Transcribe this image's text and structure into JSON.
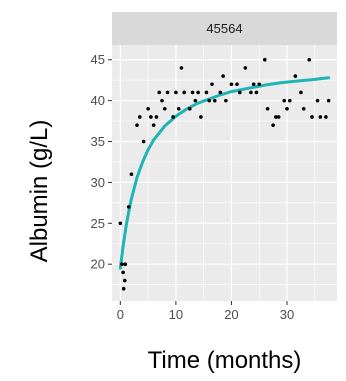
{
  "chart_data": {
    "type": "scatter",
    "facet_label": "45564",
    "xlabel": "Time (months)",
    "ylabel": "Albumin (g/L)",
    "xlim": [
      -1.5,
      39
    ],
    "ylim": [
      15.5,
      46.8
    ],
    "x_ticks": [
      0,
      10,
      20,
      30
    ],
    "y_ticks": [
      20,
      25,
      30,
      35,
      40,
      45
    ],
    "grid": true,
    "legend": "none",
    "colors": {
      "panel_bg": "#ebebeb",
      "strip_bg": "#d9d9d9",
      "grid_major": "#ffffff",
      "point": "#000000",
      "fit_line": "#1fb4b4"
    },
    "series": [
      {
        "kind": "points",
        "points": [
          [
            0.0,
            25.0
          ],
          [
            0.3,
            20.0
          ],
          [
            0.5,
            19.0
          ],
          [
            0.6,
            17.0
          ],
          [
            0.8,
            18.0
          ],
          [
            0.9,
            20.0
          ],
          [
            1.5,
            27.0
          ],
          [
            2.0,
            31.0
          ],
          [
            3.0,
            37.0
          ],
          [
            3.5,
            38.0
          ],
          [
            4.2,
            35.0
          ],
          [
            5.0,
            39.0
          ],
          [
            5.5,
            38.0
          ],
          [
            6.0,
            37.0
          ],
          [
            6.5,
            38.0
          ],
          [
            7.0,
            41.0
          ],
          [
            7.5,
            40.0
          ],
          [
            8.0,
            39.0
          ],
          [
            8.5,
            41.0
          ],
          [
            9.5,
            38.0
          ],
          [
            10.0,
            41.0
          ],
          [
            10.5,
            39.0
          ],
          [
            11.0,
            44.0
          ],
          [
            11.5,
            41.0
          ],
          [
            12.5,
            39.0
          ],
          [
            13.0,
            41.0
          ],
          [
            13.5,
            40.0
          ],
          [
            14.0,
            41.0
          ],
          [
            14.5,
            38.0
          ],
          [
            15.5,
            41.0
          ],
          [
            16.0,
            40.0
          ],
          [
            16.5,
            42.0
          ],
          [
            17.0,
            40.0
          ],
          [
            18.0,
            41.0
          ],
          [
            18.5,
            43.0
          ],
          [
            19.0,
            40.0
          ],
          [
            20.0,
            42.0
          ],
          [
            21.0,
            42.0
          ],
          [
            21.5,
            41.0
          ],
          [
            22.5,
            44.0
          ],
          [
            23.5,
            41.0
          ],
          [
            24.0,
            42.0
          ],
          [
            24.5,
            41.0
          ],
          [
            25.0,
            42.0
          ],
          [
            26.0,
            45.0
          ],
          [
            26.5,
            39.0
          ],
          [
            27.5,
            37.0
          ],
          [
            28.0,
            38.0
          ],
          [
            28.5,
            38.0
          ],
          [
            29.5,
            40.0
          ],
          [
            30.0,
            39.0
          ],
          [
            30.5,
            40.0
          ],
          [
            31.5,
            43.0
          ],
          [
            32.5,
            41.0
          ],
          [
            33.0,
            39.0
          ],
          [
            34.0,
            45.0
          ],
          [
            34.5,
            38.0
          ],
          [
            35.5,
            40.0
          ],
          [
            36.0,
            38.0
          ],
          [
            37.0,
            38.0
          ],
          [
            37.5,
            40.0
          ]
        ]
      },
      {
        "kind": "line",
        "points": [
          [
            0.0,
            19.5
          ],
          [
            0.5,
            22.2
          ],
          [
            1.0,
            24.5
          ],
          [
            1.5,
            26.4
          ],
          [
            2.0,
            28.0
          ],
          [
            3.0,
            30.6
          ],
          [
            4.0,
            32.5
          ],
          [
            5.0,
            34.0
          ],
          [
            6.0,
            35.2
          ],
          [
            8.0,
            36.9
          ],
          [
            10.0,
            38.1
          ],
          [
            12.0,
            39.0
          ],
          [
            14.0,
            39.7
          ],
          [
            16.0,
            40.2
          ],
          [
            18.0,
            40.7
          ],
          [
            20.0,
            41.1
          ],
          [
            23.0,
            41.5
          ],
          [
            26.0,
            41.9
          ],
          [
            29.0,
            42.2
          ],
          [
            32.0,
            42.4
          ],
          [
            35.0,
            42.6
          ],
          [
            37.5,
            42.8
          ]
        ]
      }
    ]
  }
}
